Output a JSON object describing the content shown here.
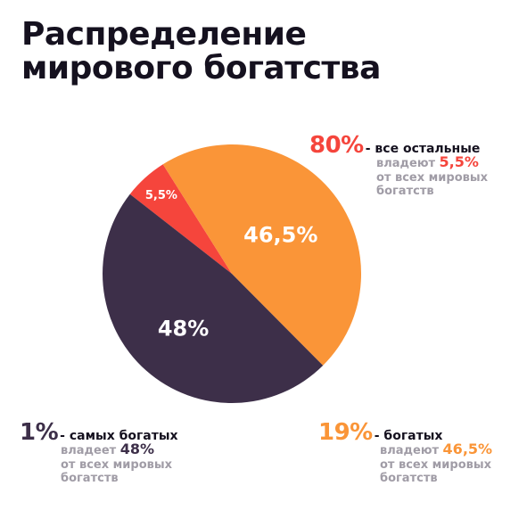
{
  "title_lines": [
    "Распределение",
    "мирового богатства"
  ],
  "colors": {
    "top": "#3d2f49",
    "rich": "#fa9538",
    "others": "#f5453c",
    "title": "#15111f",
    "muted": "#a09ca6"
  },
  "legend": {
    "others": {
      "pct": "80%",
      "group": "- все остальные",
      "owns_prefix": "владеют ",
      "share": "5,5%",
      "rest_line1": "от всех мировых",
      "rest_line2": "богатств"
    },
    "rich": {
      "pct": "19%",
      "group": "- богатых",
      "owns_prefix": "владеют ",
      "share": "46,5%",
      "rest_line1": "от всех мировых",
      "rest_line2": "богатств"
    },
    "top": {
      "pct": "1%",
      "group": "- самых богатых",
      "owns_prefix": "владеет ",
      "share": "48%",
      "rest_line1": "от всех мировых",
      "rest_line2": "богатств"
    }
  },
  "chart_data": {
    "type": "pie",
    "title": "Распределение мирового богатства",
    "slices": [
      {
        "label": "5,5%",
        "value": 5.5,
        "color": "#f5453c"
      },
      {
        "label": "46,5%",
        "value": 46.5,
        "color": "#fa9538"
      },
      {
        "label": "48%",
        "value": 48,
        "color": "#3d2f49"
      }
    ],
    "legend": "around"
  }
}
